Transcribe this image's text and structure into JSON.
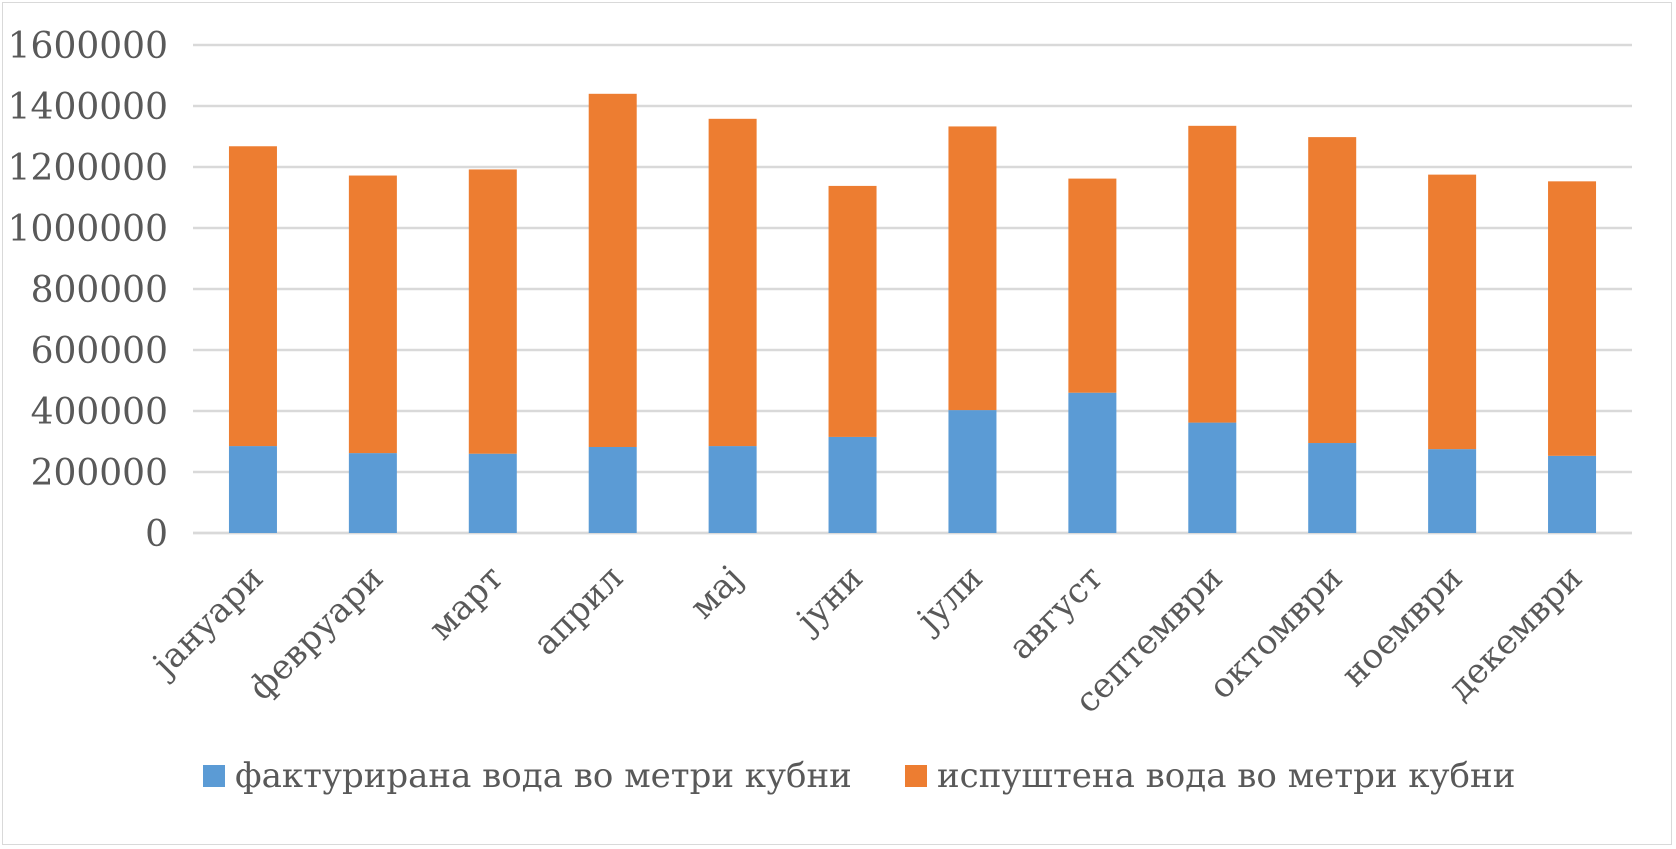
{
  "chart_data": {
    "type": "bar",
    "stacked": true,
    "title": "",
    "xlabel": "",
    "ylabel": "",
    "ylim": [
      0,
      1600000
    ],
    "yticks": [
      0,
      200000,
      400000,
      600000,
      800000,
      1000000,
      1200000,
      1400000,
      1600000
    ],
    "ytick_labels": [
      "0",
      "200000",
      "400000",
      "600000",
      "800000",
      "1000000",
      "1200000",
      "1400000",
      "1600000"
    ],
    "grid": true,
    "legend_position": "bottom",
    "categories": [
      "јануари",
      "февруари",
      "март",
      "април",
      "мај",
      "јуни",
      "јули",
      "август",
      "септември",
      "октомври",
      "ноември",
      "декември"
    ],
    "series": [
      {
        "name": "фактурирана вода во метри кубни",
        "color": "#5b9bd5",
        "values": [
          285000,
          262000,
          260000,
          282000,
          285000,
          315000,
          403000,
          460000,
          362000,
          295000,
          275000,
          253000
        ]
      },
      {
        "name": "испуштена вода во метри кубни",
        "color": "#ed7d31",
        "values": [
          983000,
          910000,
          932000,
          1158000,
          1073000,
          823000,
          930000,
          702000,
          973000,
          1003000,
          900000,
          900000
        ]
      }
    ]
  }
}
